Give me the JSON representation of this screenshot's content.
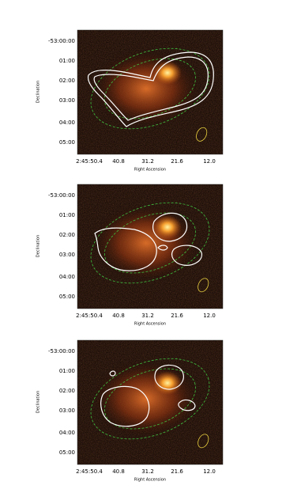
{
  "panels": [
    {
      "yticks": [
        "-53:00:00",
        "01:00",
        "02:00",
        "03:00",
        "04:00",
        "05:00"
      ],
      "xticks": [
        "2:45:50.4",
        "40.8",
        "31.2",
        "21.6",
        "12.0"
      ],
      "xlabel": "Right Ascension",
      "ylabel": "Declination"
    },
    {
      "yticks": [
        "-53:00:00",
        "01:00",
        "02:00",
        "03:00",
        "04:00",
        "05:00"
      ],
      "xticks": [
        "2:45:50.4",
        "40.8",
        "31.2",
        "21.6",
        "12.0"
      ],
      "xlabel": "Right Ascension",
      "ylabel": "Declination"
    },
    {
      "yticks": [
        "-53:00:00",
        "01:00",
        "02:00",
        "03:00",
        "04:00",
        "05:00"
      ],
      "xticks": [
        "2:45:50.4",
        "40.8",
        "31.2",
        "21.6",
        "12.0"
      ],
      "xlabel": "Right Ascension",
      "ylabel": "Declination"
    }
  ]
}
